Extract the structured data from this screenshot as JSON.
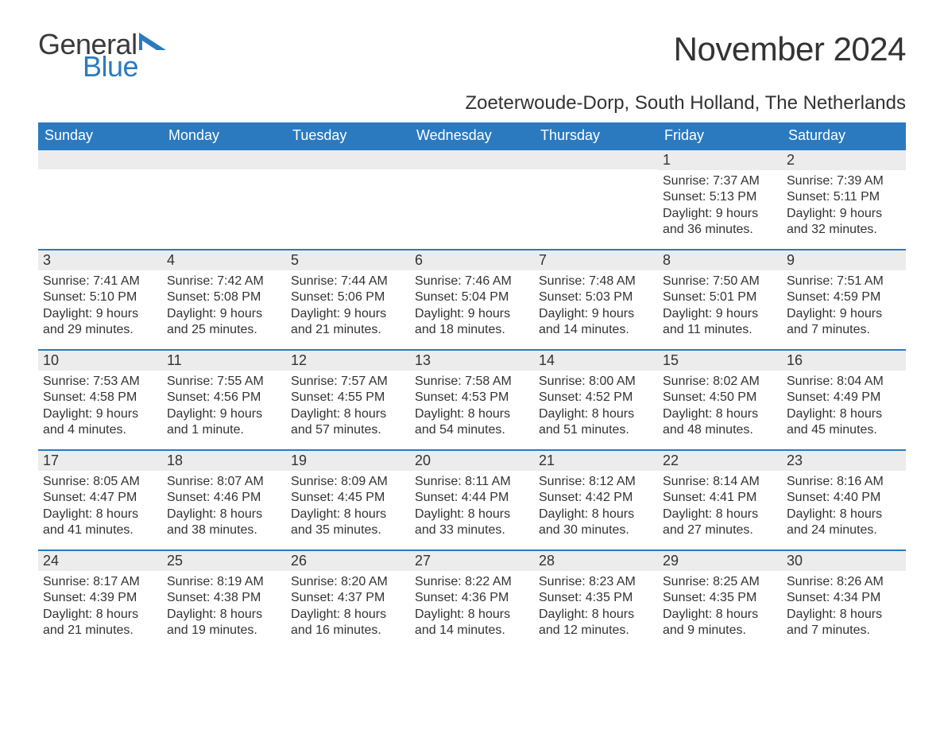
{
  "logo": {
    "text_general": "General",
    "text_blue": "Blue",
    "tri_color": "#2b7ac0",
    "general_color": "#3a3a3a"
  },
  "header": {
    "month_title": "November 2024",
    "location": "Zoeterwoude-Dorp, South Holland, The Netherlands"
  },
  "styling": {
    "header_bg": "#2b7ac0",
    "header_text": "#ffffff",
    "daynum_bg": "#ececec",
    "daynum_border_top": "#2b7ac0",
    "body_text": "#333333",
    "page_bg": "#ffffff",
    "font_family": "Arial",
    "month_title_fontsize": 42,
    "location_fontsize": 24,
    "weekday_fontsize": 18,
    "daynum_fontsize": 18,
    "body_fontsize": 16
  },
  "weekdays": [
    "Sunday",
    "Monday",
    "Tuesday",
    "Wednesday",
    "Thursday",
    "Friday",
    "Saturday"
  ],
  "weeks": [
    [
      {
        "empty": true
      },
      {
        "empty": true
      },
      {
        "empty": true
      },
      {
        "empty": true
      },
      {
        "empty": true
      },
      {
        "num": "1",
        "sunrise": "Sunrise: 7:37 AM",
        "sunset": "Sunset: 5:13 PM",
        "day1": "Daylight: 9 hours",
        "day2": "and 36 minutes."
      },
      {
        "num": "2",
        "sunrise": "Sunrise: 7:39 AM",
        "sunset": "Sunset: 5:11 PM",
        "day1": "Daylight: 9 hours",
        "day2": "and 32 minutes."
      }
    ],
    [
      {
        "num": "3",
        "sunrise": "Sunrise: 7:41 AM",
        "sunset": "Sunset: 5:10 PM",
        "day1": "Daylight: 9 hours",
        "day2": "and 29 minutes."
      },
      {
        "num": "4",
        "sunrise": "Sunrise: 7:42 AM",
        "sunset": "Sunset: 5:08 PM",
        "day1": "Daylight: 9 hours",
        "day2": "and 25 minutes."
      },
      {
        "num": "5",
        "sunrise": "Sunrise: 7:44 AM",
        "sunset": "Sunset: 5:06 PM",
        "day1": "Daylight: 9 hours",
        "day2": "and 21 minutes."
      },
      {
        "num": "6",
        "sunrise": "Sunrise: 7:46 AM",
        "sunset": "Sunset: 5:04 PM",
        "day1": "Daylight: 9 hours",
        "day2": "and 18 minutes."
      },
      {
        "num": "7",
        "sunrise": "Sunrise: 7:48 AM",
        "sunset": "Sunset: 5:03 PM",
        "day1": "Daylight: 9 hours",
        "day2": "and 14 minutes."
      },
      {
        "num": "8",
        "sunrise": "Sunrise: 7:50 AM",
        "sunset": "Sunset: 5:01 PM",
        "day1": "Daylight: 9 hours",
        "day2": "and 11 minutes."
      },
      {
        "num": "9",
        "sunrise": "Sunrise: 7:51 AM",
        "sunset": "Sunset: 4:59 PM",
        "day1": "Daylight: 9 hours",
        "day2": "and 7 minutes."
      }
    ],
    [
      {
        "num": "10",
        "sunrise": "Sunrise: 7:53 AM",
        "sunset": "Sunset: 4:58 PM",
        "day1": "Daylight: 9 hours",
        "day2": "and 4 minutes."
      },
      {
        "num": "11",
        "sunrise": "Sunrise: 7:55 AM",
        "sunset": "Sunset: 4:56 PM",
        "day1": "Daylight: 9 hours",
        "day2": "and 1 minute."
      },
      {
        "num": "12",
        "sunrise": "Sunrise: 7:57 AM",
        "sunset": "Sunset: 4:55 PM",
        "day1": "Daylight: 8 hours",
        "day2": "and 57 minutes."
      },
      {
        "num": "13",
        "sunrise": "Sunrise: 7:58 AM",
        "sunset": "Sunset: 4:53 PM",
        "day1": "Daylight: 8 hours",
        "day2": "and 54 minutes."
      },
      {
        "num": "14",
        "sunrise": "Sunrise: 8:00 AM",
        "sunset": "Sunset: 4:52 PM",
        "day1": "Daylight: 8 hours",
        "day2": "and 51 minutes."
      },
      {
        "num": "15",
        "sunrise": "Sunrise: 8:02 AM",
        "sunset": "Sunset: 4:50 PM",
        "day1": "Daylight: 8 hours",
        "day2": "and 48 minutes."
      },
      {
        "num": "16",
        "sunrise": "Sunrise: 8:04 AM",
        "sunset": "Sunset: 4:49 PM",
        "day1": "Daylight: 8 hours",
        "day2": "and 45 minutes."
      }
    ],
    [
      {
        "num": "17",
        "sunrise": "Sunrise: 8:05 AM",
        "sunset": "Sunset: 4:47 PM",
        "day1": "Daylight: 8 hours",
        "day2": "and 41 minutes."
      },
      {
        "num": "18",
        "sunrise": "Sunrise: 8:07 AM",
        "sunset": "Sunset: 4:46 PM",
        "day1": "Daylight: 8 hours",
        "day2": "and 38 minutes."
      },
      {
        "num": "19",
        "sunrise": "Sunrise: 8:09 AM",
        "sunset": "Sunset: 4:45 PM",
        "day1": "Daylight: 8 hours",
        "day2": "and 35 minutes."
      },
      {
        "num": "20",
        "sunrise": "Sunrise: 8:11 AM",
        "sunset": "Sunset: 4:44 PM",
        "day1": "Daylight: 8 hours",
        "day2": "and 33 minutes."
      },
      {
        "num": "21",
        "sunrise": "Sunrise: 8:12 AM",
        "sunset": "Sunset: 4:42 PM",
        "day1": "Daylight: 8 hours",
        "day2": "and 30 minutes."
      },
      {
        "num": "22",
        "sunrise": "Sunrise: 8:14 AM",
        "sunset": "Sunset: 4:41 PM",
        "day1": "Daylight: 8 hours",
        "day2": "and 27 minutes."
      },
      {
        "num": "23",
        "sunrise": "Sunrise: 8:16 AM",
        "sunset": "Sunset: 4:40 PM",
        "day1": "Daylight: 8 hours",
        "day2": "and 24 minutes."
      }
    ],
    [
      {
        "num": "24",
        "sunrise": "Sunrise: 8:17 AM",
        "sunset": "Sunset: 4:39 PM",
        "day1": "Daylight: 8 hours",
        "day2": "and 21 minutes."
      },
      {
        "num": "25",
        "sunrise": "Sunrise: 8:19 AM",
        "sunset": "Sunset: 4:38 PM",
        "day1": "Daylight: 8 hours",
        "day2": "and 19 minutes."
      },
      {
        "num": "26",
        "sunrise": "Sunrise: 8:20 AM",
        "sunset": "Sunset: 4:37 PM",
        "day1": "Daylight: 8 hours",
        "day2": "and 16 minutes."
      },
      {
        "num": "27",
        "sunrise": "Sunrise: 8:22 AM",
        "sunset": "Sunset: 4:36 PM",
        "day1": "Daylight: 8 hours",
        "day2": "and 14 minutes."
      },
      {
        "num": "28",
        "sunrise": "Sunrise: 8:23 AM",
        "sunset": "Sunset: 4:35 PM",
        "day1": "Daylight: 8 hours",
        "day2": "and 12 minutes."
      },
      {
        "num": "29",
        "sunrise": "Sunrise: 8:25 AM",
        "sunset": "Sunset: 4:35 PM",
        "day1": "Daylight: 8 hours",
        "day2": "and 9 minutes."
      },
      {
        "num": "30",
        "sunrise": "Sunrise: 8:26 AM",
        "sunset": "Sunset: 4:34 PM",
        "day1": "Daylight: 8 hours",
        "day2": "and 7 minutes."
      }
    ]
  ]
}
